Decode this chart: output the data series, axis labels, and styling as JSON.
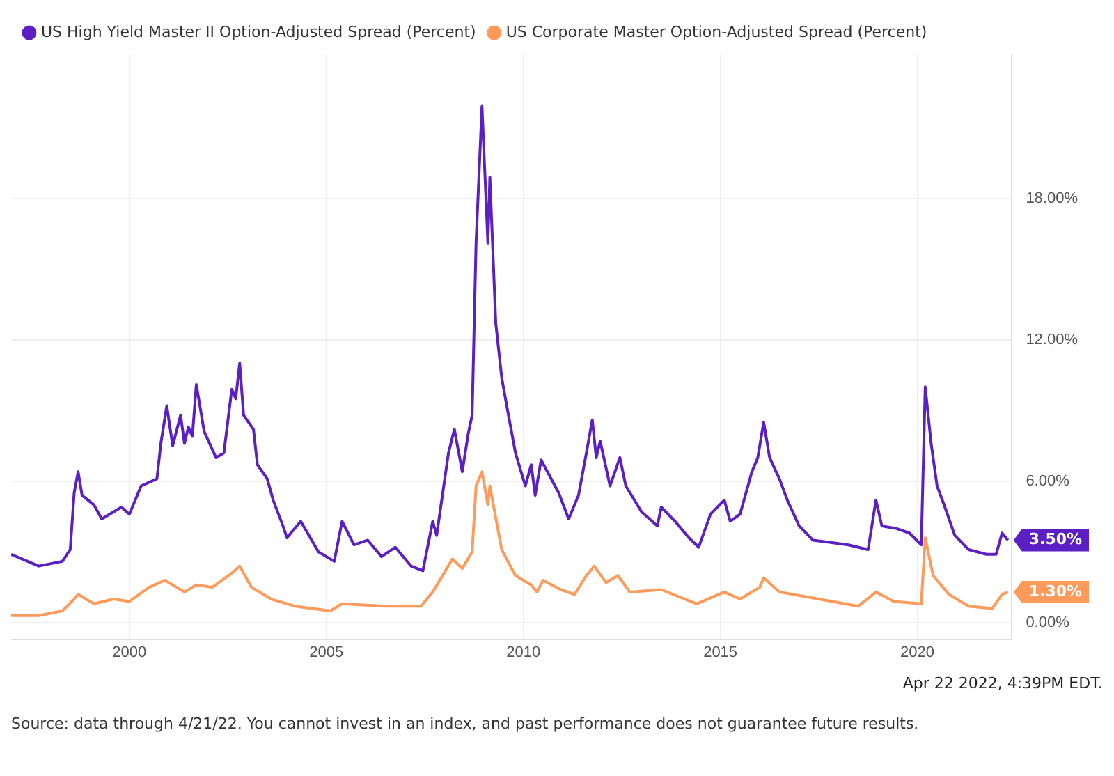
{
  "chart_data": {
    "type": "line",
    "legend": "top left",
    "grid": true,
    "marker": "none",
    "line_style": "solid",
    "xlim": [
      1997.0,
      2022.4
    ],
    "xticks": [
      2000,
      2005,
      2010,
      2015,
      2020
    ],
    "ylim": [
      -0.7,
      24.1
    ],
    "yticks": [
      {
        "value": 0,
        "label": "0.00%"
      },
      {
        "value": 6,
        "label": "6.00%"
      },
      {
        "value": 12,
        "label": "12.00%"
      },
      {
        "value": 18,
        "label": "18.00%"
      }
    ],
    "series": [
      {
        "name": "US High Yield Master II Option-Adjusted Spread (Percent)",
        "color": "#5b1fc4",
        "x": [
          1997.0,
          1997.7,
          1998.3,
          1998.5,
          1998.6,
          1998.7,
          1998.8,
          1999.1,
          1999.3,
          1999.8,
          2000.0,
          2000.3,
          2000.7,
          2000.8,
          2000.95,
          2001.1,
          2001.3,
          2001.4,
          2001.5,
          2001.6,
          2001.7,
          2001.9,
          2002.2,
          2002.4,
          2002.6,
          2002.7,
          2002.8,
          2002.9,
          2003.15,
          2003.25,
          2003.5,
          2003.65,
          2003.9,
          2004.0,
          2004.35,
          2004.8,
          2005.2,
          2005.4,
          2005.7,
          2006.05,
          2006.4,
          2006.75,
          2007.15,
          2007.45,
          2007.7,
          2007.8,
          2008.1,
          2008.25,
          2008.45,
          2008.6,
          2008.7,
          2008.8,
          2008.95,
          2009.1,
          2009.15,
          2009.3,
          2009.45,
          2009.6,
          2009.8,
          2010.05,
          2010.2,
          2010.3,
          2010.45,
          2010.9,
          2011.15,
          2011.4,
          2011.6,
          2011.75,
          2011.85,
          2011.95,
          2012.2,
          2012.45,
          2012.6,
          2013.0,
          2013.4,
          2013.5,
          2013.85,
          2014.2,
          2014.45,
          2014.75,
          2015.1,
          2015.25,
          2015.5,
          2015.8,
          2015.95,
          2016.1,
          2016.25,
          2016.5,
          2016.7,
          2017.0,
          2017.35,
          2017.8,
          2018.25,
          2018.75,
          2018.95,
          2019.1,
          2019.45,
          2019.8,
          2020.1,
          2020.2,
          2020.35,
          2020.5,
          2020.7,
          2020.95,
          2021.3,
          2021.75,
          2022.0,
          2022.15,
          2022.3
        ],
        "values": [
          2.9,
          2.4,
          2.6,
          3.1,
          5.5,
          6.4,
          5.4,
          5.0,
          4.4,
          4.9,
          4.6,
          5.8,
          6.1,
          7.6,
          9.2,
          7.5,
          8.8,
          7.6,
          8.3,
          7.9,
          10.1,
          8.1,
          7.0,
          7.2,
          9.9,
          9.5,
          11.0,
          8.8,
          8.2,
          6.7,
          6.1,
          5.2,
          4.1,
          3.6,
          4.3,
          3.0,
          2.6,
          4.3,
          3.3,
          3.5,
          2.8,
          3.2,
          2.4,
          2.2,
          4.3,
          3.7,
          7.2,
          8.2,
          6.4,
          8.0,
          8.8,
          16.1,
          21.9,
          16.1,
          18.9,
          12.7,
          10.4,
          9.0,
          7.2,
          5.8,
          6.7,
          5.4,
          6.9,
          5.5,
          4.4,
          5.4,
          7.2,
          8.6,
          7.0,
          7.7,
          5.8,
          7.0,
          5.8,
          4.7,
          4.1,
          4.9,
          4.3,
          3.6,
          3.2,
          4.6,
          5.2,
          4.3,
          4.6,
          6.4,
          7.0,
          8.5,
          7.0,
          6.1,
          5.2,
          4.1,
          3.5,
          3.4,
          3.3,
          3.1,
          5.2,
          4.1,
          4.0,
          3.8,
          3.3,
          10.0,
          7.6,
          5.8,
          4.9,
          3.7,
          3.1,
          2.9,
          2.9,
          3.8,
          3.5
        ]
      },
      {
        "name": "US Corporate Master Option-Adjusted Spread (Percent)",
        "color": "#ff9a5a",
        "x": [
          1997.0,
          1997.7,
          1998.3,
          1998.6,
          1998.7,
          1999.1,
          1999.6,
          2000.0,
          2000.5,
          2000.9,
          2001.4,
          2001.7,
          2002.1,
          2002.6,
          2002.8,
          2003.1,
          2003.6,
          2004.2,
          2005.1,
          2005.4,
          2006.5,
          2007.4,
          2007.7,
          2008.2,
          2008.45,
          2008.7,
          2008.8,
          2008.95,
          2009.1,
          2009.15,
          2009.45,
          2009.8,
          2010.2,
          2010.35,
          2010.5,
          2010.95,
          2011.3,
          2011.6,
          2011.8,
          2012.1,
          2012.4,
          2012.7,
          2013.5,
          2014.4,
          2015.1,
          2015.5,
          2016.0,
          2016.1,
          2016.5,
          2017.5,
          2018.5,
          2018.95,
          2019.4,
          2020.1,
          2020.2,
          2020.4,
          2020.8,
          2021.3,
          2021.9,
          2022.15,
          2022.3
        ],
        "values": [
          0.3,
          0.3,
          0.5,
          1.0,
          1.2,
          0.8,
          1.0,
          0.9,
          1.5,
          1.8,
          1.3,
          1.6,
          1.5,
          2.1,
          2.4,
          1.5,
          1.0,
          0.7,
          0.5,
          0.8,
          0.7,
          0.7,
          1.3,
          2.7,
          2.3,
          3.0,
          5.8,
          6.4,
          5.0,
          5.8,
          3.1,
          2.0,
          1.6,
          1.3,
          1.8,
          1.4,
          1.2,
          2.0,
          2.4,
          1.7,
          2.0,
          1.3,
          1.4,
          0.8,
          1.3,
          1.0,
          1.5,
          1.9,
          1.3,
          1.0,
          0.7,
          1.3,
          0.9,
          0.8,
          3.6,
          2.0,
          1.2,
          0.7,
          0.6,
          1.2,
          1.3
        ]
      }
    ],
    "annotations": [
      {
        "text": "3.50%",
        "x": 2022.3,
        "y": 3.5
      },
      {
        "text": "1.30%",
        "x": 2022.3,
        "y": 1.3
      },
      "Apr 22 2022, 4:39PM EDT.",
      "Source: data through 4/21/22. You cannot invest in an index, and past performance does not guarantee future results."
    ]
  }
}
